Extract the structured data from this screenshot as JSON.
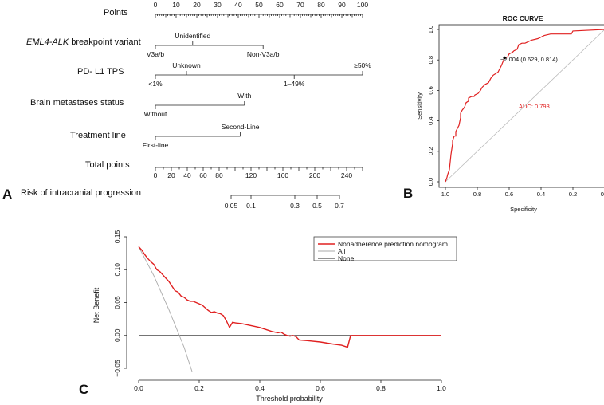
{
  "panel_labels": {
    "a": "A",
    "b": "B",
    "c": "C"
  },
  "chart_data": [
    {
      "type": "nomogram",
      "rows": [
        {
          "key": "points",
          "label": "Points",
          "ticks": [
            "0",
            "10",
            "20",
            "30",
            "40",
            "50",
            "60",
            "70",
            "80",
            "90",
            "100"
          ],
          "minor_step": 1
        },
        {
          "key": "eml4",
          "label_italic": "EML4-ALK",
          "label_rest": " breakpoint variant",
          "levels": [
            {
              "text": "V3a/b",
              "points": 0
            },
            {
              "text": "Unidentified",
              "points": 18
            },
            {
              "text": "Non-V3a/b",
              "points": 52
            }
          ]
        },
        {
          "key": "pdl1",
          "label": "PD- L1 TPS",
          "levels": [
            {
              "text": "<1%",
              "points": 0
            },
            {
              "text": "Unknown",
              "points": 15
            },
            {
              "text": "1–49%",
              "points": 67
            },
            {
              "text": "≥50%",
              "points": 100
            }
          ]
        },
        {
          "key": "brain",
          "label": "Brain metastases status",
          "levels": [
            {
              "text": "Without",
              "points": 0
            },
            {
              "text": "With",
              "points": 43
            }
          ]
        },
        {
          "key": "line",
          "label": "Treatment line",
          "levels": [
            {
              "text": "First-line",
              "points": 0
            },
            {
              "text": "Second-Line",
              "points": 41
            }
          ]
        },
        {
          "key": "total",
          "label": "Total points",
          "ticks": [
            {
              "text": "0",
              "value": 0
            },
            {
              "text": "20",
              "value": 20
            },
            {
              "text": "40",
              "value": 40
            },
            {
              "text": "60",
              "value": 60
            },
            {
              "text": "80",
              "value": 80
            },
            {
              "text": "120",
              "value": 120
            },
            {
              "text": "160",
              "value": 160
            },
            {
              "text": "200",
              "value": 200
            },
            {
              "text": "240",
              "value": 240
            }
          ],
          "range": [
            0,
            260
          ]
        },
        {
          "key": "risk",
          "label": "Risk of intracranial progression",
          "ticks": [
            {
              "text": "0.05",
              "value": 0.05,
              "total_points": 95
            },
            {
              "text": "0.1",
              "value": 0.1,
              "total_points": 120
            },
            {
              "text": "0.3",
              "value": 0.3,
              "total_points": 175
            },
            {
              "text": "0.5",
              "value": 0.5,
              "total_points": 203
            },
            {
              "text": "0.7",
              "value": 0.7,
              "total_points": 231
            }
          ]
        }
      ]
    },
    {
      "type": "line",
      "title": "ROC CURVE",
      "xlabel": "Specificity",
      "ylabel": "Sensitivity",
      "xlim": [
        1.0,
        0.0
      ],
      "ylim": [
        0.0,
        1.0
      ],
      "x_ticks": [
        "1.0",
        "0.8",
        "0.6",
        "0.4",
        "0.2",
        "0.0"
      ],
      "y_ticks": [
        "0.0",
        "0.2",
        "0.4",
        "0.6",
        "0.8",
        "1.0"
      ],
      "annotation": "−2.004 (0.629, 0.814)",
      "auc_text": "AUC: 0.793",
      "curve_color": "#e02020",
      "point": {
        "specificity": 0.629,
        "sensitivity": 0.814
      },
      "series": [
        {
          "name": "ROC",
          "specificity": [
            1.0,
            0.99,
            0.985,
            0.975,
            0.97,
            0.965,
            0.955,
            0.955,
            0.945,
            0.935,
            0.935,
            0.915,
            0.905,
            0.905,
            0.895,
            0.88,
            0.87,
            0.855,
            0.855,
            0.835,
            0.82,
            0.815,
            0.795,
            0.78,
            0.77,
            0.75,
            0.73,
            0.715,
            0.7,
            0.685,
            0.67,
            0.65,
            0.629,
            0.61,
            0.6,
            0.58,
            0.57,
            0.55,
            0.54,
            0.52,
            0.5,
            0.48,
            0.46,
            0.42,
            0.38,
            0.34,
            0.3,
            0.25,
            0.21,
            0.2,
            0.0
          ],
          "sensitivity": [
            0.0,
            0.03,
            0.05,
            0.08,
            0.13,
            0.18,
            0.25,
            0.27,
            0.3,
            0.3,
            0.33,
            0.37,
            0.42,
            0.45,
            0.47,
            0.49,
            0.52,
            0.53,
            0.55,
            0.56,
            0.56,
            0.57,
            0.58,
            0.6,
            0.62,
            0.64,
            0.65,
            0.68,
            0.7,
            0.71,
            0.72,
            0.76,
            0.814,
            0.82,
            0.84,
            0.85,
            0.86,
            0.87,
            0.9,
            0.91,
            0.91,
            0.92,
            0.93,
            0.94,
            0.96,
            0.97,
            0.97,
            0.97,
            0.97,
            0.99,
            1.0
          ]
        },
        {
          "name": "reference",
          "specificity": [
            1.0,
            0.0
          ],
          "sensitivity": [
            0.0,
            1.0
          ],
          "color": "#bbbbbb"
        }
      ]
    },
    {
      "type": "line",
      "xlabel": "Threshold probability",
      "ylabel": "Net Benefit",
      "xlim": [
        0.0,
        1.0
      ],
      "ylim": [
        -0.06,
        0.155
      ],
      "x_ticks": [
        "0.0",
        "0.2",
        "0.4",
        "0.6",
        "0.8",
        "1.0"
      ],
      "y_ticks": [
        "−0.05",
        "0.00",
        "0.05",
        "0.10",
        "0.15"
      ],
      "y_tick_values": [
        -0.05,
        0.0,
        0.05,
        0.1,
        0.15
      ],
      "legend_position": "top-right",
      "series": [
        {
          "name": "Nonadherence prediction nomogram",
          "color": "#e02020",
          "width": 1.4,
          "x": [
            0.0,
            0.01,
            0.02,
            0.03,
            0.04,
            0.05,
            0.06,
            0.07,
            0.08,
            0.09,
            0.1,
            0.11,
            0.12,
            0.13,
            0.14,
            0.15,
            0.16,
            0.17,
            0.18,
            0.19,
            0.2,
            0.21,
            0.22,
            0.23,
            0.24,
            0.25,
            0.26,
            0.27,
            0.28,
            0.29,
            0.3,
            0.31,
            0.32,
            0.34,
            0.36,
            0.38,
            0.4,
            0.42,
            0.44,
            0.46,
            0.47,
            0.48,
            0.49,
            0.5,
            0.51,
            0.52,
            0.53,
            0.56,
            0.6,
            0.64,
            0.67,
            0.69,
            0.7,
            0.72,
            0.8,
            1.0
          ],
          "y": [
            0.135,
            0.13,
            0.123,
            0.117,
            0.112,
            0.108,
            0.1,
            0.097,
            0.092,
            0.087,
            0.082,
            0.075,
            0.068,
            0.066,
            0.06,
            0.058,
            0.054,
            0.052,
            0.052,
            0.05,
            0.048,
            0.046,
            0.042,
            0.038,
            0.035,
            0.036,
            0.034,
            0.033,
            0.03,
            0.022,
            0.012,
            0.02,
            0.019,
            0.018,
            0.016,
            0.014,
            0.012,
            0.009,
            0.006,
            0.004,
            0.005,
            0.002,
            0.0,
            -0.001,
            0.0,
            -0.002,
            -0.007,
            -0.008,
            -0.01,
            -0.013,
            -0.015,
            -0.018,
            0.0,
            0.0,
            0.0,
            0.0
          ]
        },
        {
          "name": "All",
          "color": "#aaaaaa",
          "width": 0.9,
          "x": [
            0.0,
            0.05,
            0.1,
            0.15,
            0.18
          ],
          "y": [
            0.135,
            0.091,
            0.039,
            -0.018,
            -0.06
          ]
        },
        {
          "name": "None",
          "color": "#222222",
          "width": 0.9,
          "x": [
            0.0,
            1.0
          ],
          "y": [
            0.0,
            0.0
          ]
        }
      ]
    }
  ]
}
